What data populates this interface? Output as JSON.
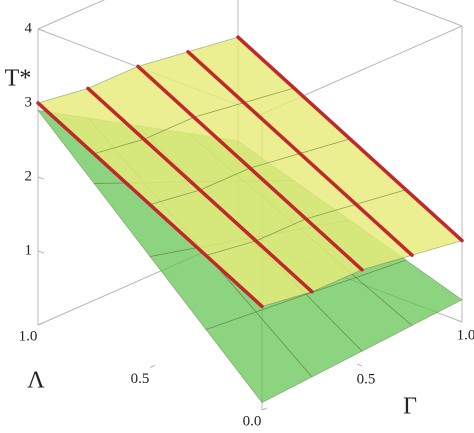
{
  "chart_data": {
    "type": "surface",
    "xlabel": "Γ",
    "ylabel": "Λ",
    "zlabel": "T*",
    "x": [
      0,
      0.25,
      0.5,
      0.75,
      1
    ],
    "y": [
      0,
      0.25,
      0.5,
      0.75,
      1
    ],
    "xlim": [
      0,
      1
    ],
    "ylim": [
      0,
      1
    ],
    "zlim": [
      0,
      4
    ],
    "xticks": [
      0.5,
      {
        "value": 1,
        "label": "1.0"
      }
    ],
    "yticks": [
      {
        "value": 0,
        "label": "0.0"
      },
      0.5,
      {
        "value": 1,
        "label": "1.0"
      }
    ],
    "zticks": [
      1,
      2,
      3,
      4
    ],
    "series": [
      {
        "color": "#e6ec7a",
        "line_color": "#c0282a",
        "z": [
          [
            1.4,
            1.3,
            1.3,
            1.2,
            1.1
          ],
          [
            1.8,
            1.7,
            1.7,
            1.6,
            1.5
          ],
          [
            2.2,
            2.1,
            2.1,
            2.0,
            1.9
          ],
          [
            2.6,
            2.5,
            2.5,
            2.4,
            2.3
          ],
          [
            3.0,
            2.9,
            2.9,
            2.8,
            2.7
          ]
        ]
      },
      {
        "color": "#5cc24a",
        "z": [
          [
            0.1,
            0.15,
            0.2,
            0.25,
            0.3
          ],
          [
            0.8,
            0.74,
            0.68,
            0.61,
            0.55
          ],
          [
            1.5,
            1.33,
            1.15,
            0.98,
            0.8
          ],
          [
            2.2,
            1.91,
            1.63,
            1.34,
            1.05
          ],
          [
            2.9,
            2.5,
            2.1,
            1.7,
            1.3
          ]
        ]
      }
    ]
  }
}
